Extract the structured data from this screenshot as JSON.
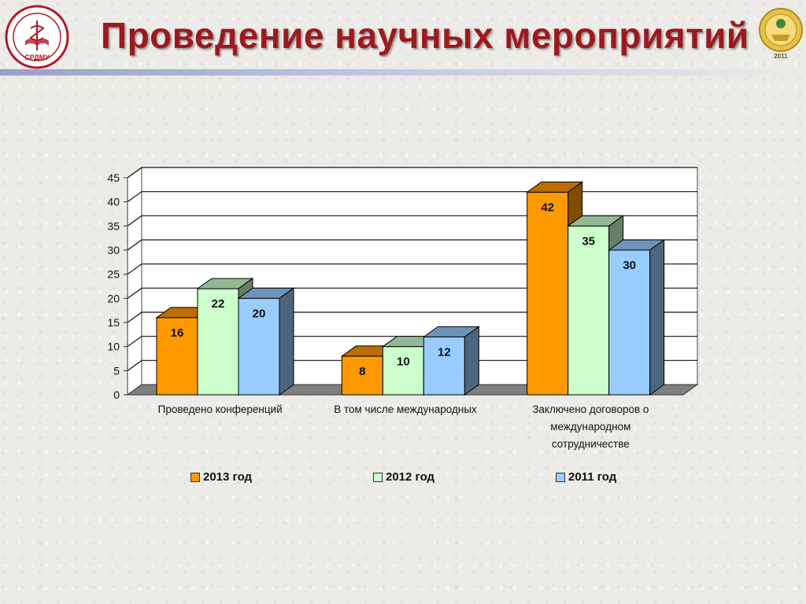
{
  "page": {
    "title": "Проведение научных мероприятий",
    "logo_left_text": "СРДМУ",
    "logo_right_text": "2011"
  },
  "colors": {
    "title": "#9b1a1f",
    "series_2013": "#ff9900",
    "series_2012": "#ccffcc",
    "series_2011": "#99ccff"
  },
  "chart_data": {
    "type": "bar",
    "categories": [
      "Проведено конференций",
      "В том числе международных",
      "Заключено договоров о международном сотрудничестве"
    ],
    "category_lines": [
      [
        "Проведено конференций"
      ],
      [
        "В том числе международных"
      ],
      [
        "Заключено договоров о",
        "международном",
        "сотрудничестве"
      ]
    ],
    "series": [
      {
        "name": "2013 год",
        "values": [
          16,
          8,
          42
        ]
      },
      {
        "name": "2012 год",
        "values": [
          22,
          10,
          35
        ]
      },
      {
        "name": "2011 год",
        "values": [
          20,
          12,
          30
        ]
      }
    ],
    "ylim": [
      0,
      45
    ],
    "yticks": [
      "0",
      "5",
      "10",
      "15",
      "20",
      "25",
      "30",
      "35",
      "40",
      "45"
    ],
    "grid": true,
    "legend_position": "bottom",
    "data_labels": true,
    "style": "3d-clustered-column"
  }
}
